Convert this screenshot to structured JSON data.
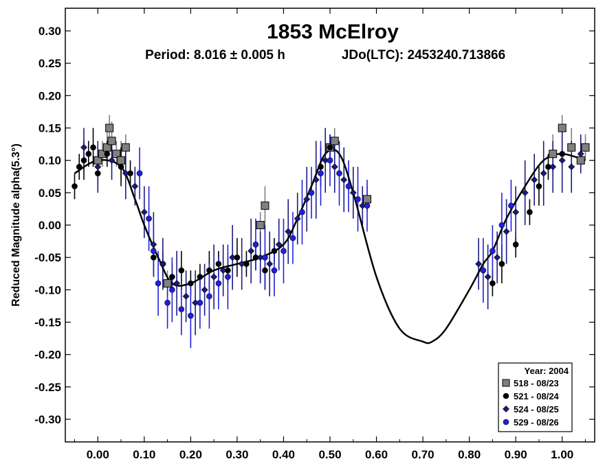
{
  "chart_data": {
    "type": "scatter",
    "title": "1853 McElroy",
    "subtitle_period": "Period: 8.016 ± 0.005 h",
    "subtitle_epoch": "JDo(LTC): 2453240.713866",
    "ylabel": "Reduced Magnitude alpha(5.3°)",
    "xlabel": "",
    "xlim": [
      -0.07,
      1.07
    ],
    "ylim": [
      0.335,
      -0.335
    ],
    "y_inverted": true,
    "x_ticks": [
      0.0,
      0.1,
      0.2,
      0.3,
      0.4,
      0.5,
      0.6,
      0.7,
      0.8,
      0.9,
      1.0
    ],
    "x_tick_labels": [
      "0.00",
      "0.10",
      "0.20",
      "0.30",
      "0.40",
      "0.50",
      "0.60",
      "0.70",
      "0.80",
      "0.90",
      "1.00"
    ],
    "y_ticks": [
      -0.3,
      -0.25,
      -0.2,
      -0.15,
      -0.1,
      -0.05,
      0.0,
      0.05,
      0.1,
      0.15,
      0.2,
      0.25,
      0.3
    ],
    "y_tick_labels": [
      "-0.30",
      "-0.25",
      "-0.20",
      "-0.15",
      "-0.10",
      "-0.05",
      "0.00",
      "0.05",
      "0.10",
      "0.15",
      "0.20",
      "0.25",
      "0.30"
    ],
    "grid": false,
    "legend": {
      "placement": "bottom-right",
      "title": "Year: 2004",
      "entries": [
        {
          "label": "518 - 08/23",
          "marker": "square",
          "color": "#808080"
        },
        {
          "label": "521 - 08/24",
          "marker": "circle",
          "color": "#000000"
        },
        {
          "label": "524 - 08/25",
          "marker": "diamond",
          "color": "#1a1a80"
        },
        {
          "label": "529 - 08/26",
          "marker": "circle",
          "color": "#1f1fe0"
        }
      ]
    },
    "fit_curve": {
      "x": [
        -0.05,
        0.0,
        0.05,
        0.08,
        0.1,
        0.13,
        0.16,
        0.2,
        0.25,
        0.3,
        0.35,
        0.4,
        0.43,
        0.46,
        0.49,
        0.52,
        0.55,
        0.6,
        0.65,
        0.7,
        0.72,
        0.75,
        0.8,
        0.83,
        0.85,
        0.88,
        0.92,
        0.96,
        1.0,
        1.05
      ],
      "y": [
        0.08,
        0.1,
        0.09,
        0.04,
        0.0,
        -0.05,
        -0.09,
        -0.09,
        -0.07,
        -0.06,
        -0.05,
        -0.03,
        0.01,
        0.06,
        0.11,
        0.11,
        0.05,
        -0.08,
        -0.16,
        -0.18,
        -0.18,
        -0.16,
        -0.1,
        -0.06,
        -0.04,
        0.01,
        0.06,
        0.1,
        0.11,
        0.1
      ]
    },
    "series": [
      {
        "name": "518 - 08/23",
        "marker": "square",
        "color": "#808080",
        "x": [
          0.0,
          0.01,
          0.02,
          0.025,
          0.03,
          0.04,
          0.05,
          0.06,
          0.15,
          0.35,
          0.36,
          0.5,
          0.51,
          0.58,
          0.98,
          1.0,
          1.02,
          1.04,
          1.05
        ],
        "y": [
          0.1,
          0.11,
          0.12,
          0.15,
          0.13,
          0.11,
          0.1,
          0.12,
          -0.09,
          0.0,
          0.03,
          0.12,
          0.13,
          0.04,
          0.11,
          0.15,
          0.12,
          0.1,
          0.12
        ],
        "err": [
          0.02,
          0.02,
          0.03,
          0.02,
          0.03,
          0.02,
          0.03,
          0.02,
          0.02,
          0.02,
          0.03,
          0.02,
          0.02,
          0.02,
          0.03,
          0.02,
          0.03,
          0.02,
          0.02
        ]
      },
      {
        "name": "521 - 08/24",
        "marker": "circle",
        "color": "#000000",
        "x": [
          -0.05,
          -0.04,
          -0.03,
          -0.02,
          -0.01,
          0.0,
          0.02,
          0.05,
          0.07,
          0.12,
          0.14,
          0.16,
          0.18,
          0.2,
          0.22,
          0.24,
          0.26,
          0.28,
          0.3,
          0.32,
          0.34,
          0.36,
          0.38,
          0.48,
          0.5,
          0.85,
          0.87,
          0.9,
          0.93,
          0.95,
          0.97,
          1.0
        ],
        "y": [
          0.06,
          0.09,
          0.1,
          0.11,
          0.12,
          0.08,
          0.11,
          0.09,
          0.08,
          -0.05,
          -0.06,
          -0.08,
          -0.07,
          -0.09,
          -0.08,
          -0.07,
          -0.06,
          -0.07,
          -0.05,
          -0.06,
          -0.05,
          -0.07,
          -0.04,
          0.09,
          0.12,
          -0.09,
          -0.06,
          -0.03,
          0.02,
          0.06,
          0.09,
          0.11
        ],
        "err": [
          0.02,
          0.02,
          0.03,
          0.02,
          0.03,
          0.02,
          0.02,
          0.03,
          0.02,
          0.03,
          0.02,
          0.02,
          0.03,
          0.02,
          0.02,
          0.03,
          0.02,
          0.02,
          0.03,
          0.02,
          0.02,
          0.03,
          0.02,
          0.03,
          0.02,
          0.02,
          0.03,
          0.02,
          0.02,
          0.03,
          0.02,
          0.02
        ]
      },
      {
        "name": "524 - 08/25",
        "marker": "diamond",
        "color": "#1a1a80",
        "x": [
          -0.03,
          0.0,
          0.03,
          0.06,
          0.08,
          0.1,
          0.12,
          0.14,
          0.17,
          0.19,
          0.21,
          0.23,
          0.25,
          0.27,
          0.29,
          0.31,
          0.33,
          0.35,
          0.37,
          0.39,
          0.41,
          0.43,
          0.45,
          0.47,
          0.49,
          0.51,
          0.53,
          0.55,
          0.57,
          0.82,
          0.84,
          0.86,
          0.88,
          0.9,
          0.92,
          0.94,
          0.96,
          0.98,
          1.0,
          1.02,
          1.04
        ],
        "y": [
          0.12,
          0.09,
          0.1,
          0.08,
          0.06,
          0.02,
          -0.03,
          -0.06,
          -0.09,
          -0.11,
          -0.12,
          -0.1,
          -0.08,
          -0.07,
          -0.05,
          -0.06,
          -0.04,
          -0.05,
          -0.06,
          -0.03,
          -0.01,
          0.01,
          0.04,
          0.07,
          0.1,
          0.09,
          0.07,
          0.05,
          0.03,
          -0.06,
          -0.08,
          -0.05,
          -0.01,
          0.02,
          0.05,
          0.07,
          0.08,
          0.09,
          0.1,
          0.09,
          0.11
        ],
        "err": [
          0.03,
          0.04,
          0.03,
          0.04,
          0.03,
          0.04,
          0.05,
          0.04,
          0.05,
          0.04,
          0.05,
          0.04,
          0.05,
          0.04,
          0.05,
          0.04,
          0.05,
          0.04,
          0.05,
          0.04,
          0.05,
          0.04,
          0.05,
          0.06,
          0.05,
          0.04,
          0.05,
          0.04,
          0.03,
          0.04,
          0.05,
          0.04,
          0.05,
          0.04,
          0.05,
          0.04,
          0.05,
          0.04,
          0.05,
          0.04,
          0.03
        ]
      },
      {
        "name": "529 - 08/26",
        "marker": "circle",
        "color": "#1f1fe0",
        "x": [
          0.09,
          0.11,
          0.12,
          0.13,
          0.15,
          0.16,
          0.18,
          0.2,
          0.22,
          0.24,
          0.26,
          0.28,
          0.34,
          0.36,
          0.38,
          0.4,
          0.42,
          0.44,
          0.46,
          0.48,
          0.5,
          0.52,
          0.54,
          0.56,
          0.58,
          0.83,
          0.85,
          0.87,
          0.89
        ],
        "y": [
          0.08,
          0.01,
          -0.04,
          -0.09,
          -0.12,
          -0.1,
          -0.13,
          -0.14,
          -0.12,
          -0.11,
          -0.09,
          -0.08,
          -0.03,
          -0.05,
          -0.07,
          -0.04,
          -0.02,
          0.02,
          0.05,
          0.08,
          0.1,
          0.08,
          0.06,
          0.04,
          0.03,
          -0.07,
          -0.04,
          0.0,
          0.03
        ],
        "err": [
          0.04,
          0.05,
          0.04,
          0.05,
          0.04,
          0.05,
          0.04,
          0.05,
          0.04,
          0.05,
          0.04,
          0.05,
          0.04,
          0.05,
          0.04,
          0.05,
          0.04,
          0.05,
          0.04,
          0.05,
          0.04,
          0.05,
          0.04,
          0.05,
          0.04,
          0.05,
          0.04,
          0.05,
          0.04
        ]
      }
    ]
  }
}
